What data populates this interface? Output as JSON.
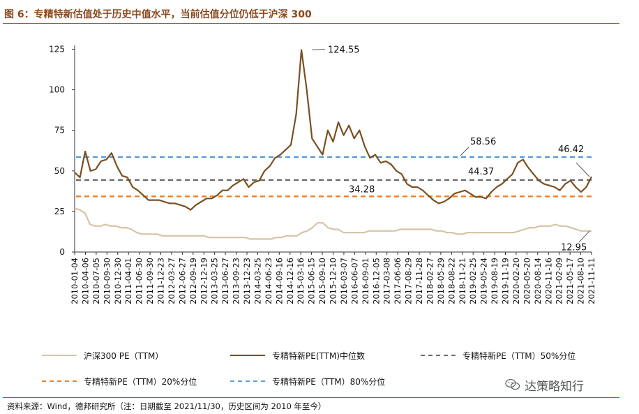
{
  "figure": {
    "title": "图 6：专精特新估值处于历史中值水平，当前估值分位仍低于沪深 300",
    "source": "资料来源：Wind，德邦研究所（注：日期截至 2021/11/30，历史区间为 2010 年至今）",
    "watermark": "达策略知行",
    "watermark_icon": "wechat-icon"
  },
  "chart_data": {
    "type": "line",
    "title": "图 6：专精特新估值处于历史中值水平，当前估值分位仍低于沪深 300",
    "xlabel": "",
    "ylabel": "",
    "ylim": [
      0,
      125
    ],
    "yticks": [
      0,
      25,
      50,
      75,
      100,
      125
    ],
    "grid": false,
    "legend_position": "bottom",
    "x_tick_labels": [
      "2010-01-04",
      "2010-04-06",
      "2010-07-05",
      "2010-09-30",
      "2010-12-30",
      "2011-04-01",
      "2011-06-30",
      "2011-09-30",
      "2011-12-23",
      "2012-03-27",
      "2012-06-27",
      "2012-09-19",
      "2012-12-19",
      "2013-03-25",
      "2013-06-27",
      "2013-09-23",
      "2013-12-23",
      "2014-03-25",
      "2014-06-23",
      "2014-09-16",
      "2014-12-16",
      "2015-03-16",
      "2015-06-15",
      "2015-09-10",
      "2015-12-10",
      "2016-03-07",
      "2016-06-07",
      "2016-09-01",
      "2016-12-05",
      "2017-03-08",
      "2017-06-06",
      "2017-08-29",
      "2017-11-28",
      "2018-02-27",
      "2018-05-29",
      "2018-08-22",
      "2018-11-21",
      "2019-02-25",
      "2019-05-24",
      "2019-08-19",
      "2019-11-19",
      "2020-02-20",
      "2020-05-20",
      "2020-08-14",
      "2020-11-16",
      "2021-02-09",
      "2021-05-17",
      "2021-08-10",
      "2021-11-11"
    ],
    "series": [
      {
        "name": "沪深300 PE（TTM）",
        "color": "#d6c4a8",
        "style": "solid",
        "values": [
          27,
          26,
          24,
          17,
          16,
          16,
          17,
          16,
          16,
          15,
          15,
          14,
          12,
          11,
          11,
          11,
          11,
          10,
          10,
          10,
          10,
          10,
          10,
          10,
          10,
          10,
          9,
          9,
          9,
          9,
          9,
          9,
          9,
          9,
          8,
          8,
          8,
          8,
          8,
          9,
          9,
          10,
          10,
          10,
          12,
          13,
          15,
          18,
          18,
          15,
          14,
          14,
          12,
          12,
          12,
          12,
          12,
          13,
          13,
          13,
          13,
          13,
          13,
          14,
          14,
          14,
          14,
          14,
          14,
          14,
          13,
          13,
          12,
          12,
          11,
          11,
          12,
          12,
          12,
          12,
          12,
          12,
          12,
          12,
          12,
          12,
          13,
          14,
          15,
          15,
          16,
          16,
          16,
          17,
          16,
          16,
          15,
          14,
          13,
          13,
          12.95
        ]
      },
      {
        "name": "专精特新PE(TTM)中位数",
        "color": "#7a5020",
        "style": "solid",
        "values": [
          49,
          46,
          62,
          50,
          51,
          56,
          57,
          61,
          53,
          47,
          46,
          40,
          38,
          35,
          32,
          32,
          32,
          31,
          30,
          30,
          29,
          28,
          26,
          29,
          31,
          33,
          33,
          35,
          38,
          38,
          41,
          43,
          45,
          40,
          43,
          44,
          50,
          53,
          58,
          60,
          63,
          66,
          85,
          124.55,
          100,
          70,
          65,
          60,
          75,
          68,
          80,
          72,
          78,
          70,
          75,
          65,
          58,
          60,
          55,
          56,
          54,
          50,
          48,
          42,
          40,
          40,
          38,
          35,
          32,
          30,
          31,
          33,
          36,
          37,
          38,
          36,
          34,
          34,
          33,
          37,
          40,
          42,
          45,
          48,
          55,
          57,
          52,
          48,
          44,
          42,
          41,
          40,
          38,
          42,
          44,
          40,
          37,
          40,
          46.42
        ]
      },
      {
        "name": "专精特新PE（TTM）50%分位",
        "color": "#6e6e6e",
        "style": "dashed",
        "level": 44.37
      },
      {
        "name": "专精特新PE（TTM）20%分位",
        "color": "#f07f22",
        "style": "dashed",
        "level": 34.28
      },
      {
        "name": "专精特新PE（TTM）80%分位",
        "color": "#5b9bd5",
        "style": "dashed",
        "level": 58.56
      }
    ],
    "annotations": [
      {
        "text": "124.55",
        "value": 124.55
      },
      {
        "text": "58.56",
        "value": 58.56
      },
      {
        "text": "46.42",
        "value": 46.42
      },
      {
        "text": "44.37",
        "value": 44.37
      },
      {
        "text": "34.28",
        "value": 34.28
      },
      {
        "text": "12.95",
        "value": 12.95
      }
    ]
  }
}
